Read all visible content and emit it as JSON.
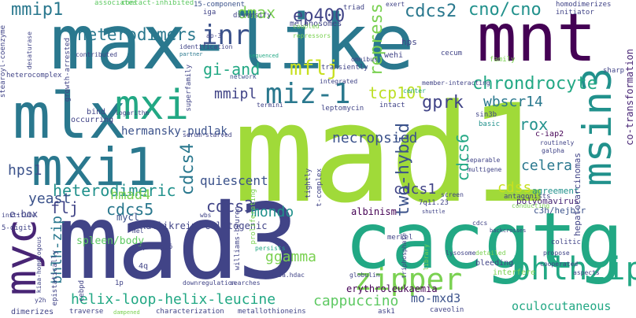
{
  "words": [
    {
      "text": "max-like",
      "color": "#2a788e"
    },
    {
      "text": "mad1",
      "color": "#a0da39"
    },
    {
      "text": "mad3",
      "color": "#414487"
    },
    {
      "text": "cacgtg",
      "color": "#22a884"
    },
    {
      "text": "mlx",
      "color": "#2a788e"
    },
    {
      "text": "mxi1",
      "color": "#2a788e"
    },
    {
      "text": "mxi",
      "color": "#22a884"
    },
    {
      "text": "mnt",
      "color": "#440154"
    },
    {
      "text": "myc",
      "color": "#482575"
    },
    {
      "text": "msin3",
      "color": "#21918c"
    },
    {
      "text": "zipper",
      "color": "#7ad151"
    },
    {
      "text": "bhlhzip",
      "color": "#22a884"
    },
    {
      "text": "inr",
      "color": "#3b528b"
    },
    {
      "text": "miz-1",
      "color": "#2a788e"
    },
    {
      "text": "mflj",
      "color": "#c8e020"
    },
    {
      "text": "heterodimers",
      "color": "#2a788e"
    },
    {
      "text": "mmip1",
      "color": "#2a788e"
    },
    {
      "text": "ep400",
      "color": "#414487"
    },
    {
      "text": "cdcs2",
      "color": "#2a788e"
    },
    {
      "text": "cno/cno",
      "color": "#21918c"
    },
    {
      "text": "gi-and",
      "color": "#22a884"
    },
    {
      "text": "chrondrocyte",
      "color": "#22a884"
    },
    {
      "text": "repress",
      "color": "#7ad151"
    },
    {
      "text": "dmax",
      "color": "#7ad151"
    },
    {
      "text": "mmipl",
      "color": "#414487"
    },
    {
      "text": "tcp10l",
      "color": "#bddf26"
    },
    {
      "text": "gprk",
      "color": "#414487"
    },
    {
      "text": "wbscr14",
      "color": "#2a788e"
    },
    {
      "text": "heterodimeric",
      "color": "#21918c"
    },
    {
      "text": "cdcs4",
      "color": "#2a788e"
    },
    {
      "text": "necropsied",
      "color": "#3b528b"
    },
    {
      "text": "two-hybid",
      "color": "#3b528b"
    },
    {
      "text": "cdcs6",
      "color": "#22a884"
    },
    {
      "text": "rox",
      "color": "#21918c"
    },
    {
      "text": "cdcs5",
      "color": "#2a788e"
    },
    {
      "text": "cdcs3",
      "color": "#414487"
    },
    {
      "text": "hmad4",
      "color": "#7ad151"
    },
    {
      "text": "yeast",
      "color": "#3b528b"
    },
    {
      "text": "hps1",
      "color": "#3b528b"
    },
    {
      "text": "flj",
      "color": "#414487"
    },
    {
      "text": "bhlh-zip",
      "color": "#2a788e"
    },
    {
      "text": "mondo",
      "color": "#21918c"
    },
    {
      "text": "ggamma",
      "color": "#7ad151"
    },
    {
      "text": "cdcs1",
      "color": "#414487"
    },
    {
      "text": "celera",
      "color": "#2a788e"
    },
    {
      "text": "cdss",
      "color": "#c8e020"
    },
    {
      "text": "helix-loop-helix-leucine",
      "color": "#22a884"
    },
    {
      "text": "cappuccino",
      "color": "#5ec962"
    },
    {
      "text": "mo-mxd3",
      "color": "#3b528b"
    },
    {
      "text": "oculocutaneous",
      "color": "#22a884"
    },
    {
      "text": "erythroleukaemia",
      "color": "#440154"
    },
    {
      "text": "quiescent",
      "color": "#3b528b"
    },
    {
      "text": "hermansky-pudlak",
      "color": "#3b528b"
    },
    {
      "text": "mycl",
      "color": "#3b528b"
    },
    {
      "text": "kallikrein",
      "color": "#414487"
    },
    {
      "text": "colitogenic",
      "color": "#414487"
    },
    {
      "text": "spleen/body",
      "color": "#5ec962"
    },
    {
      "text": "albinism",
      "color": "#440154"
    },
    {
      "text": "polyomavirus",
      "color": "#482575"
    },
    {
      "text": "c3h/hejbir",
      "color": "#3b528b"
    },
    {
      "text": "agreement",
      "color": "#21918c"
    },
    {
      "text": "hepatocarcinomas",
      "color": "#414487"
    },
    {
      "text": "co-transformation",
      "color": "#482575"
    },
    {
      "text": "e-box",
      "color": "#414487"
    },
    {
      "text": "diversify",
      "color": "#414487"
    },
    {
      "text": "melanosomes",
      "color": "#414487"
    },
    {
      "text": "triad",
      "color": "#414487"
    },
    {
      "text": "homodimerizes",
      "color": "#414487"
    },
    {
      "text": "initiator",
      "color": "#414487"
    },
    {
      "text": "associates",
      "color": "#5ec962"
    },
    {
      "text": "contact-inhibited",
      "color": "#5ec962"
    },
    {
      "text": "15-component",
      "color": "#3b528b"
    },
    {
      "text": "iga",
      "color": "#414487"
    },
    {
      "text": "exert",
      "color": "#414487"
    },
    {
      "text": "ap-3",
      "color": "#414487"
    },
    {
      "text": "identification",
      "color": "#414487"
    },
    {
      "text": "partner",
      "color": "#2a788e"
    },
    {
      "text": "superfamily",
      "color": "#414487"
    },
    {
      "text": "network",
      "color": "#3b528b"
    },
    {
      "text": "transiently",
      "color": "#414487"
    },
    {
      "text": "coupled",
      "color": "#7ad151"
    },
    {
      "text": "repressors",
      "color": "#7ad151"
    },
    {
      "text": "sequenced",
      "color": "#22a884"
    },
    {
      "text": "omnibus",
      "color": "#414487"
    },
    {
      "text": "hps",
      "color": "#414487"
    },
    {
      "text": "wehi",
      "color": "#414487"
    },
    {
      "text": "cecum",
      "color": "#414487"
    },
    {
      "text": "family",
      "color": "#7ad151"
    },
    {
      "text": "sharp",
      "color": "#414487"
    },
    {
      "text": "growth-arrested",
      "color": "#414487"
    },
    {
      "text": "logarithm",
      "color": "#414487"
    },
    {
      "text": "heterocomplex",
      "color": "#414487"
    },
    {
      "text": "integrated",
      "color": "#414487"
    },
    {
      "text": "member-interacting",
      "color": "#414487"
    },
    {
      "text": "center",
      "color": "#22a884"
    },
    {
      "text": "intact",
      "color": "#414487"
    },
    {
      "text": "sin3b",
      "color": "#414487"
    },
    {
      "text": "basic",
      "color": "#21918c"
    },
    {
      "text": "c-iap2",
      "color": "#440154"
    },
    {
      "text": "routinely",
      "color": "#414487"
    },
    {
      "text": "galpha",
      "color": "#414487"
    },
    {
      "text": "separable",
      "color": "#414487"
    },
    {
      "text": "multigene",
      "color": "#414487"
    },
    {
      "text": "screen",
      "color": "#414487"
    },
    {
      "text": "antagonists",
      "color": "#414487"
    },
    {
      "text": "conducting",
      "color": "#7ad151"
    },
    {
      "text": "7q11.23",
      "color": "#414487"
    },
    {
      "text": "shuttle",
      "color": "#414487"
    },
    {
      "text": "cdcs",
      "color": "#414487"
    },
    {
      "text": "lysosome",
      "color": "#414487"
    },
    {
      "text": "merkel",
      "color": "#414487"
    },
    {
      "text": "bleeding",
      "color": "#414487"
    },
    {
      "text": "detailed",
      "color": "#7ad151"
    },
    {
      "text": "interfere",
      "color": "#7ad151"
    },
    {
      "text": "cooperated",
      "color": "#414487"
    },
    {
      "text": "aspects",
      "color": "#414487"
    },
    {
      "text": "colitic",
      "color": "#414487"
    },
    {
      "text": "propose",
      "color": "#414487"
    },
    {
      "text": "backcrosses",
      "color": "#414487"
    },
    {
      "text": "globulin",
      "color": "#414487"
    },
    {
      "text": "triphosphate",
      "color": "#414487"
    },
    {
      "text": "library",
      "color": "#7ad151"
    },
    {
      "text": "persists",
      "color": "#22a884"
    },
    {
      "text": "downregulation",
      "color": "#414487"
    },
    {
      "text": "characterization",
      "color": "#414487"
    },
    {
      "text": "metallothioneins",
      "color": "#414487"
    },
    {
      "text": "ask1",
      "color": "#414487"
    },
    {
      "text": "caveolin",
      "color": "#414487"
    },
    {
      "text": "msin3a.hdac",
      "color": "#414487"
    },
    {
      "text": "searches",
      "color": "#414487"
    },
    {
      "text": "4q",
      "color": "#414487"
    },
    {
      "text": "4p15-p16",
      "color": "#414487"
    },
    {
      "text": "1p",
      "color": "#414487"
    },
    {
      "text": "cebpd",
      "color": "#414487"
    },
    {
      "text": "traverse",
      "color": "#414487"
    },
    {
      "text": "dampened",
      "color": "#7ad151"
    },
    {
      "text": "dimerizes",
      "color": "#414487"
    },
    {
      "text": "y2h",
      "color": "#414487"
    },
    {
      "text": "epistatically",
      "color": "#414487"
    },
    {
      "text": "kiaa-homologous",
      "color": "#414487"
    },
    {
      "text": "5-digit",
      "color": "#414487"
    },
    {
      "text": "institute",
      "color": "#414487"
    },
    {
      "text": "mel",
      "color": "#414487"
    },
    {
      "text": "serum-starved",
      "color": "#414487"
    },
    {
      "text": "bind",
      "color": "#414487"
    },
    {
      "text": "occurring",
      "color": "#414487"
    },
    {
      "text": "wbs",
      "color": "#414487"
    },
    {
      "text": "williams-beuren",
      "color": "#414487"
    },
    {
      "text": "proliferating",
      "color": "#7ad151"
    },
    {
      "text": "tightly",
      "color": "#414487"
    },
    {
      "text": "t-complex",
      "color": "#414487"
    },
    {
      "text": "leptomycin",
      "color": "#414487"
    },
    {
      "text": "termini",
      "color": "#414487"
    },
    {
      "text": "stearoyl-coenzyme",
      "color": "#414487"
    },
    {
      "text": "desaturase",
      "color": "#414487"
    },
    {
      "text": "contributed",
      "color": "#414487"
    }
  ]
}
